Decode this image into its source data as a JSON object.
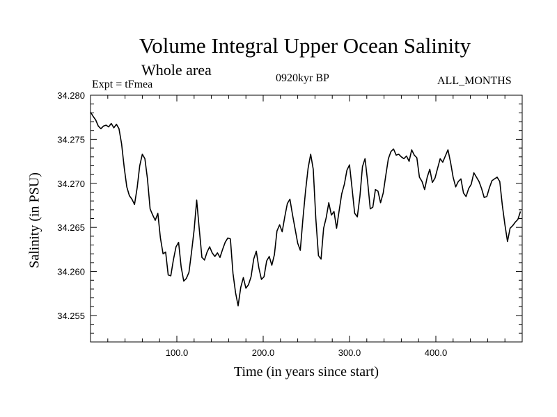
{
  "chart_data": {
    "type": "line",
    "title": "Volume Integral Upper Ocean Salinity",
    "subtitle": "Whole area",
    "experiment": "Expt = tFmea",
    "period": "0920kyr BP",
    "months": "ALL_MONTHS",
    "xlabel": "Time (in years since start)",
    "ylabel": "Salinity (in PSU)",
    "xlim": [
      0,
      500
    ],
    "ylim": [
      34.252,
      34.28
    ],
    "grid": false,
    "x_ticks": [
      {
        "value": 100,
        "label": "100.0"
      },
      {
        "value": 200,
        "label": "200.0"
      },
      {
        "value": 300,
        "label": "300.0"
      },
      {
        "value": 400,
        "label": "400.0"
      }
    ],
    "y_ticks": [
      {
        "value": 34.255,
        "label": "34.255"
      },
      {
        "value": 34.26,
        "label": "34.260"
      },
      {
        "value": 34.265,
        "label": "34.265"
      },
      {
        "value": 34.27,
        "label": "34.270"
      },
      {
        "value": 34.275,
        "label": "34.275"
      },
      {
        "value": 34.28,
        "label": "34.280"
      }
    ],
    "series": [
      {
        "name": "Salinity",
        "color": "#000000",
        "x": [
          0,
          3,
          6,
          9,
          12,
          15,
          18,
          21,
          24,
          27,
          30,
          33,
          36,
          39,
          42,
          45,
          48,
          51,
          54,
          57,
          60,
          63,
          66,
          69,
          72,
          75,
          78,
          81,
          84,
          87,
          90,
          93,
          96,
          99,
          102,
          105,
          108,
          111,
          114,
          117,
          120,
          123,
          126,
          129,
          132,
          135,
          138,
          141,
          144,
          147,
          150,
          153,
          156,
          159,
          162,
          165,
          168,
          171,
          174,
          177,
          180,
          183,
          186,
          189,
          192,
          195,
          198,
          201,
          204,
          207,
          210,
          213,
          216,
          219,
          222,
          225,
          228,
          231,
          234,
          237,
          240,
          243,
          246,
          249,
          252,
          255,
          258,
          261,
          264,
          267,
          270,
          273,
          276,
          279,
          282,
          285,
          288,
          291,
          294,
          297,
          300,
          303,
          306,
          309,
          312,
          315,
          318,
          321,
          324,
          327,
          330,
          333,
          336,
          339,
          342,
          345,
          348,
          351,
          354,
          357,
          360,
          363,
          366,
          369,
          372,
          375,
          378,
          381,
          384,
          387,
          390,
          393,
          396,
          399,
          402,
          405,
          408,
          411,
          414,
          417,
          420,
          423,
          426,
          429,
          432,
          435,
          438,
          441,
          444,
          447,
          450,
          453,
          456,
          459,
          462,
          465,
          468,
          471,
          474,
          477,
          480,
          483,
          486,
          489,
          492,
          495,
          498
        ],
        "values": [
          34.2781,
          34.2776,
          34.2772,
          34.2765,
          34.2762,
          34.2765,
          34.2766,
          34.2764,
          34.2768,
          34.2763,
          34.2767,
          34.2762,
          34.2745,
          34.2718,
          34.2696,
          34.2686,
          34.2682,
          34.2676,
          34.2695,
          34.272,
          34.2733,
          34.2728,
          34.2705,
          34.2671,
          34.2664,
          34.2658,
          34.2666,
          34.2638,
          34.262,
          34.2622,
          34.2596,
          34.2595,
          34.2613,
          34.2628,
          34.2633,
          34.2605,
          34.2589,
          34.2592,
          34.2599,
          34.2622,
          34.2647,
          34.2681,
          34.2648,
          34.2616,
          34.2613,
          34.2622,
          34.2628,
          34.2621,
          34.2617,
          34.2621,
          34.2616,
          34.2625,
          34.2633,
          34.2638,
          34.2637,
          34.2598,
          34.2576,
          34.2561,
          34.2582,
          34.2593,
          34.2581,
          34.2585,
          34.2594,
          34.2614,
          34.2623,
          34.2604,
          34.2591,
          34.2594,
          34.2612,
          34.2617,
          34.2607,
          34.2619,
          34.2646,
          34.2653,
          34.2645,
          34.2662,
          34.2677,
          34.2682,
          34.2664,
          34.2648,
          34.2632,
          34.2624,
          34.2659,
          34.2691,
          34.2717,
          34.2733,
          34.2716,
          34.266,
          34.2618,
          34.2614,
          34.2649,
          34.2661,
          34.2678,
          34.2664,
          34.2668,
          34.2649,
          34.2669,
          34.2688,
          34.2699,
          34.2715,
          34.2721,
          34.2694,
          34.2666,
          34.2662,
          34.2685,
          34.2719,
          34.2728,
          34.2702,
          34.2671,
          34.2673,
          34.2693,
          34.2691,
          34.2678,
          34.2689,
          34.2709,
          34.2728,
          34.2736,
          34.2739,
          34.2732,
          34.2733,
          34.273,
          34.2728,
          34.2731,
          34.2725,
          34.2738,
          34.2732,
          34.2729,
          34.2707,
          34.2702,
          34.2693,
          34.2707,
          34.2716,
          34.2701,
          34.2706,
          34.2717,
          34.2728,
          34.2724,
          34.2731,
          34.2738,
          34.2724,
          34.2707,
          34.2696,
          34.2702,
          34.2705,
          34.2689,
          34.2685,
          34.2694,
          34.2699,
          34.2712,
          34.2707,
          34.2702,
          34.2694,
          34.2684,
          34.2685,
          34.2695,
          34.2703,
          34.2705,
          34.2707,
          34.2702,
          34.2675,
          34.2653,
          34.2634,
          34.2649,
          34.2652,
          34.2656,
          34.2659,
          34.2668
        ]
      }
    ]
  }
}
